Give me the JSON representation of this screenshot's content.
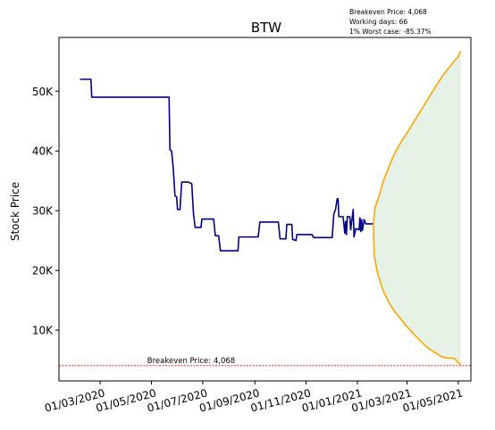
{
  "chart_data": {
    "type": "line",
    "title": "BTW",
    "ylabel": "Stock Price",
    "xlabel": "",
    "ylim": [
      1500,
      59000
    ],
    "xlim": [
      "2020-01-12",
      "2021-05-16"
    ],
    "grid": false,
    "y_ticks": [
      {
        "value": 10000,
        "label": "10K"
      },
      {
        "value": 20000,
        "label": "20K"
      },
      {
        "value": 30000,
        "label": "30K"
      },
      {
        "value": 40000,
        "label": "40K"
      },
      {
        "value": 50000,
        "label": "50K"
      }
    ],
    "x_ticks": [
      {
        "value": "2020-03-01",
        "label": "01/03/2020"
      },
      {
        "value": "2020-05-01",
        "label": "01/05/2020"
      },
      {
        "value": "2020-07-01",
        "label": "01/07/2020"
      },
      {
        "value": "2020-09-01",
        "label": "01/09/2020"
      },
      {
        "value": "2020-11-01",
        "label": "01/11/2020"
      },
      {
        "value": "2021-01-01",
        "label": "01/01/2021"
      },
      {
        "value": "2021-03-01",
        "label": "01/03/2021"
      },
      {
        "value": "2021-05-01",
        "label": "01/05/2021"
      }
    ],
    "info_box": [
      "Breakeven Price: 4,068",
      "Working days: 66",
      "1% Worst case: -85.37%"
    ],
    "breakeven": {
      "value": 4068,
      "label": "Breakeven Price: 4,068",
      "color": "#ff0000"
    },
    "history_color": "#00008b",
    "band_color": "#ffa500",
    "fill_color": "#e5f2e5",
    "history": [
      [
        "2020-02-06",
        52000
      ],
      [
        "2020-02-19",
        52000
      ],
      [
        "2020-02-20",
        49000
      ],
      [
        "2020-05-22",
        49000
      ],
      [
        "2020-05-23",
        40200
      ],
      [
        "2020-05-25",
        40000
      ],
      [
        "2020-05-27",
        37000
      ],
      [
        "2020-05-29",
        32500
      ],
      [
        "2020-05-31",
        32300
      ],
      [
        "2020-06-01",
        30200
      ],
      [
        "2020-06-04",
        30200
      ],
      [
        "2020-06-06",
        34800
      ],
      [
        "2020-06-14",
        34800
      ],
      [
        "2020-06-18",
        34500
      ],
      [
        "2020-06-20",
        29500
      ],
      [
        "2020-06-22",
        27200
      ],
      [
        "2020-06-29",
        27200
      ],
      [
        "2020-06-30",
        28600
      ],
      [
        "2020-07-14",
        28600
      ],
      [
        "2020-07-16",
        25800
      ],
      [
        "2020-07-20",
        25800
      ],
      [
        "2020-07-22",
        23300
      ],
      [
        "2020-08-12",
        23300
      ],
      [
        "2020-08-13",
        25600
      ],
      [
        "2020-09-05",
        25600
      ],
      [
        "2020-09-07",
        28100
      ],
      [
        "2020-09-29",
        28100
      ],
      [
        "2020-10-01",
        25300
      ],
      [
        "2020-10-08",
        25300
      ],
      [
        "2020-10-09",
        27700
      ],
      [
        "2020-10-15",
        27700
      ],
      [
        "2020-10-16",
        25200
      ],
      [
        "2020-10-20",
        25000
      ],
      [
        "2020-10-21",
        26000
      ],
      [
        "2020-11-08",
        26000
      ],
      [
        "2020-11-10",
        25500
      ],
      [
        "2020-12-02",
        25500
      ],
      [
        "2020-12-04",
        29500
      ],
      [
        "2020-12-06",
        30200
      ],
      [
        "2020-12-08",
        32000
      ],
      [
        "2020-12-09",
        32000
      ],
      [
        "2020-12-10",
        29000
      ],
      [
        "2020-12-15",
        29000
      ],
      [
        "2020-12-17",
        26200
      ],
      [
        "2020-12-18",
        28200
      ],
      [
        "2020-12-19",
        26000
      ],
      [
        "2020-12-20",
        29000
      ],
      [
        "2020-12-23",
        29000
      ],
      [
        "2020-12-24",
        26800
      ],
      [
        "2020-12-27",
        30200
      ],
      [
        "2020-12-28",
        25600
      ],
      [
        "2020-12-30",
        27000
      ],
      [
        "2021-01-03",
        26800
      ],
      [
        "2021-01-04",
        28800
      ],
      [
        "2021-01-05",
        26500
      ],
      [
        "2021-01-06",
        28500
      ],
      [
        "2021-01-07",
        26700
      ],
      [
        "2021-01-09",
        28500
      ],
      [
        "2021-01-11",
        27800
      ],
      [
        "2021-01-20",
        27800
      ]
    ],
    "upper_band": [
      [
        "2021-01-20",
        27800
      ],
      [
        "2021-01-22",
        30500
      ],
      [
        "2021-01-27",
        32500
      ],
      [
        "2021-02-01",
        35000
      ],
      [
        "2021-02-08",
        37500
      ],
      [
        "2021-02-15",
        39800
      ],
      [
        "2021-02-22",
        41500
      ],
      [
        "2021-03-01",
        43000
      ],
      [
        "2021-03-08",
        44600
      ],
      [
        "2021-03-15",
        46200
      ],
      [
        "2021-03-22",
        47800
      ],
      [
        "2021-03-29",
        49400
      ],
      [
        "2021-04-05",
        51000
      ],
      [
        "2021-04-12",
        52500
      ],
      [
        "2021-04-19",
        53800
      ],
      [
        "2021-04-26",
        55000
      ],
      [
        "2021-05-01",
        55800
      ],
      [
        "2021-05-04",
        56700
      ]
    ],
    "lower_band": [
      [
        "2021-01-20",
        27800
      ],
      [
        "2021-01-21",
        22500
      ],
      [
        "2021-01-25",
        19500
      ],
      [
        "2021-02-01",
        16500
      ],
      [
        "2021-02-08",
        14500
      ],
      [
        "2021-02-15",
        13000
      ],
      [
        "2021-02-22",
        11800
      ],
      [
        "2021-03-01",
        10600
      ],
      [
        "2021-03-08",
        9500
      ],
      [
        "2021-03-15",
        8500
      ],
      [
        "2021-03-22",
        7500
      ],
      [
        "2021-03-29",
        6700
      ],
      [
        "2021-04-05",
        6100
      ],
      [
        "2021-04-12",
        5500
      ],
      [
        "2021-04-19",
        5300
      ],
      [
        "2021-04-26",
        5300
      ],
      [
        "2021-05-01",
        4600
      ],
      [
        "2021-05-04",
        4200
      ]
    ]
  }
}
